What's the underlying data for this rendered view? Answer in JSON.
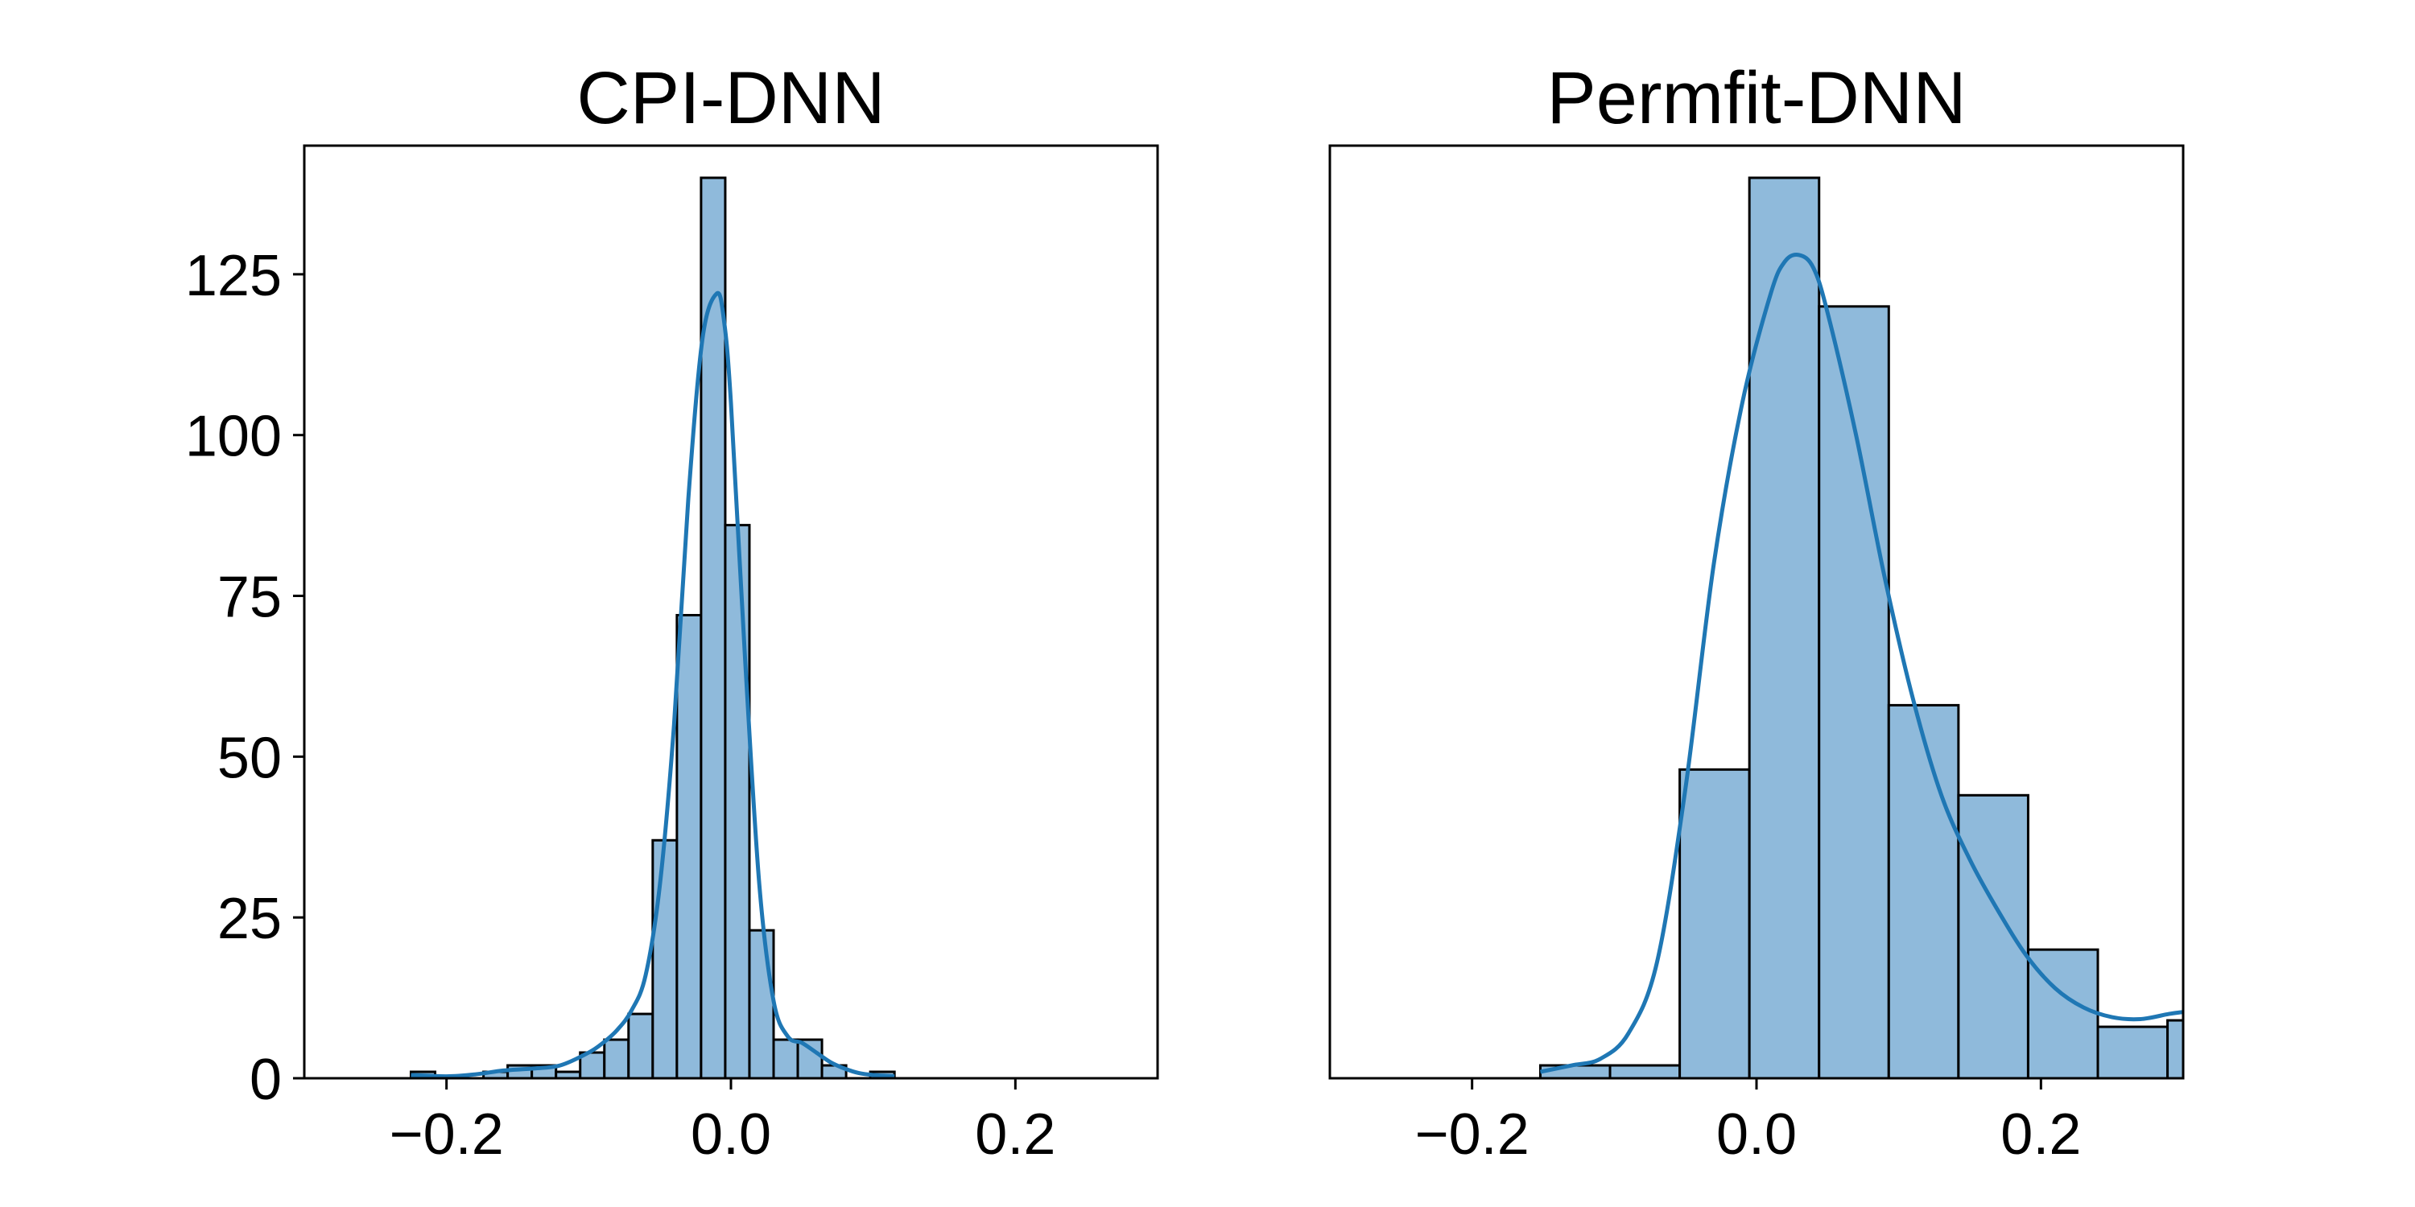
{
  "figure": {
    "bar_fill": "#8fbadb",
    "bar_edge": "#000000",
    "kde_color": "#1f77b4"
  },
  "chart_data": [
    {
      "type": "bar",
      "subtype": "histogram-with-kde",
      "title": "CPI-DNN",
      "xlabel": "",
      "ylabel": "",
      "xlim": [
        -0.3,
        0.3
      ],
      "ylim": [
        0,
        145
      ],
      "xticks": [
        -0.2,
        0.0,
        0.2
      ],
      "xtick_labels": [
        "−0.2",
        "0.0",
        "0.2"
      ],
      "yticks": [
        0,
        25,
        50,
        75,
        100,
        125
      ],
      "ytick_labels": [
        "0",
        "25",
        "50",
        "75",
        "100",
        "125"
      ],
      "grid": false,
      "bins": [
        {
          "x0": -0.225,
          "x1": -0.208,
          "count": 1
        },
        {
          "x0": -0.208,
          "x1": -0.191,
          "count": 0
        },
        {
          "x0": -0.191,
          "x1": -0.174,
          "count": 0
        },
        {
          "x0": -0.174,
          "x1": -0.157,
          "count": 1
        },
        {
          "x0": -0.157,
          "x1": -0.14,
          "count": 2
        },
        {
          "x0": -0.14,
          "x1": -0.123,
          "count": 2
        },
        {
          "x0": -0.123,
          "x1": -0.106,
          "count": 1
        },
        {
          "x0": -0.106,
          "x1": -0.089,
          "count": 4
        },
        {
          "x0": -0.089,
          "x1": -0.072,
          "count": 6
        },
        {
          "x0": -0.072,
          "x1": -0.055,
          "count": 10
        },
        {
          "x0": -0.055,
          "x1": -0.038,
          "count": 37
        },
        {
          "x0": -0.038,
          "x1": -0.021,
          "count": 72
        },
        {
          "x0": -0.021,
          "x1": -0.004,
          "count": 140
        },
        {
          "x0": -0.004,
          "x1": 0.013,
          "count": 86
        },
        {
          "x0": 0.013,
          "x1": 0.03,
          "count": 23
        },
        {
          "x0": 0.03,
          "x1": 0.047,
          "count": 6
        },
        {
          "x0": 0.047,
          "x1": 0.064,
          "count": 6
        },
        {
          "x0": 0.064,
          "x1": 0.081,
          "count": 2
        },
        {
          "x0": 0.081,
          "x1": 0.098,
          "count": 0
        },
        {
          "x0": 0.098,
          "x1": 0.115,
          "count": 1
        }
      ],
      "kde": {
        "x": [
          -0.225,
          -0.2,
          -0.18,
          -0.16,
          -0.14,
          -0.12,
          -0.1,
          -0.09,
          -0.08,
          -0.07,
          -0.06,
          -0.05,
          -0.04,
          -0.03,
          -0.02,
          -0.01,
          -0.005,
          0.0,
          0.01,
          0.02,
          0.03,
          0.04,
          0.05,
          0.06,
          0.07,
          0.08,
          0.09,
          0.1,
          0.115
        ],
        "y": [
          0.5,
          0.3,
          0.6,
          1.2,
          1.5,
          2.0,
          4.0,
          5.5,
          7.5,
          10.5,
          16,
          30,
          55,
          90,
          115,
          122,
          118,
          105,
          65,
          30,
          12,
          6.5,
          5.5,
          4.0,
          2.5,
          1.5,
          0.8,
          0.5,
          0.3
        ]
      }
    },
    {
      "type": "bar",
      "subtype": "histogram-with-kde",
      "title": "Permfit-DNN",
      "xlabel": "",
      "ylabel": "",
      "xlim": [
        -0.3,
        0.3
      ],
      "ylim": [
        0,
        145
      ],
      "xticks": [
        -0.2,
        0.0,
        0.2
      ],
      "xtick_labels": [
        "−0.2",
        "0.0",
        "0.2"
      ],
      "grid": false,
      "bins": [
        {
          "x0": -0.152,
          "x1": -0.103,
          "count": 2
        },
        {
          "x0": -0.103,
          "x1": -0.054,
          "count": 2
        },
        {
          "x0": -0.054,
          "x1": -0.005,
          "count": 48
        },
        {
          "x0": -0.005,
          "x1": 0.044,
          "count": 140
        },
        {
          "x0": 0.044,
          "x1": 0.093,
          "count": 120
        },
        {
          "x0": 0.093,
          "x1": 0.142,
          "count": 58
        },
        {
          "x0": 0.142,
          "x1": 0.191,
          "count": 44
        },
        {
          "x0": 0.191,
          "x1": 0.24,
          "count": 20
        },
        {
          "x0": 0.24,
          "x1": 0.289,
          "count": 8
        },
        {
          "x0": 0.289,
          "x1": 0.338,
          "count": 9
        }
      ],
      "kde": {
        "x": [
          -0.152,
          -0.13,
          -0.11,
          -0.09,
          -0.07,
          -0.05,
          -0.03,
          -0.01,
          0.01,
          0.02,
          0.03,
          0.04,
          0.05,
          0.07,
          0.09,
          0.11,
          0.13,
          0.15,
          0.17,
          0.19,
          0.21,
          0.23,
          0.25,
          0.27,
          0.29,
          0.3
        ],
        "y": [
          1,
          2,
          3,
          7,
          18,
          45,
          80,
          105,
          122,
          127,
          128,
          126,
          119,
          100,
          78,
          59,
          44,
          34,
          26,
          19,
          14,
          11,
          9.5,
          9.2,
          10,
          10.3
        ]
      }
    }
  ]
}
